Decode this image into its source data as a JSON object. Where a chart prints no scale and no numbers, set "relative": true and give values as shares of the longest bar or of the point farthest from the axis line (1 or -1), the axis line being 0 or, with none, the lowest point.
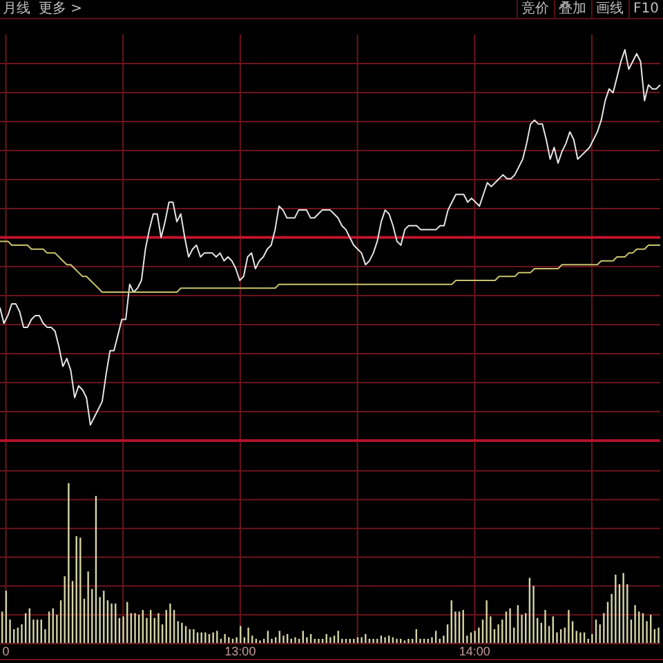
{
  "chart_data": [
    {
      "type": "line",
      "relative": true,
      "grid": true,
      "annotations": [
        "月线",
        "更多 >",
        "竞价",
        "叠加",
        "画线",
        "F10"
      ],
      "ref_lines": [
        {
          "axis": "y",
          "value": 0.52,
          "color": "#c0142c"
        }
      ],
      "categories": [
        null,
        null,
        null,
        null,
        null,
        null,
        null,
        null,
        null,
        null,
        null,
        null,
        null,
        null,
        null,
        null,
        null,
        null,
        null,
        null,
        null,
        null,
        null,
        null,
        null,
        null,
        null,
        null,
        null,
        null,
        null,
        null,
        null,
        null,
        null,
        null,
        null,
        null,
        null,
        null,
        null,
        null,
        null,
        null,
        null,
        null,
        null,
        null,
        null,
        null,
        null,
        null,
        null,
        null,
        null,
        null,
        null,
        null,
        null,
        null,
        null,
        null,
        null,
        null,
        null,
        null,
        null,
        null,
        null,
        null,
        null,
        null,
        null,
        null,
        null,
        null,
        null,
        null,
        null,
        null,
        null,
        null,
        null,
        null,
        null,
        null,
        null,
        null,
        null,
        null,
        null,
        null,
        null,
        null,
        null,
        null,
        null,
        null,
        null,
        null,
        null,
        null,
        null,
        null,
        null,
        null,
        null,
        null,
        null,
        null,
        null,
        null,
        null,
        null,
        null,
        null,
        null,
        null,
        null,
        null,
        null,
        null,
        null,
        null,
        null,
        null,
        null,
        null,
        null,
        null,
        null,
        null,
        null,
        null,
        null,
        null,
        null,
        null,
        null,
        null,
        null,
        null,
        null,
        null,
        null,
        null,
        null,
        null,
        null,
        null,
        null,
        null,
        null,
        null,
        null,
        null,
        null,
        null,
        null,
        null,
        null,
        null,
        null,
        null,
        null,
        null,
        null,
        null,
        null
      ],
      "series": [
        {
          "color": "#e6e6e6",
          "values": [
            0.34,
            0.3,
            0.32,
            0.35,
            0.35,
            0.33,
            0.29,
            0.29,
            0.31,
            0.32,
            0.32,
            0.3,
            0.29,
            0.29,
            0.28,
            0.24,
            0.19,
            0.21,
            0.18,
            0.11,
            0.14,
            0.13,
            0.11,
            0.04,
            0.06,
            0.08,
            0.1,
            0.17,
            0.23,
            0.23,
            0.27,
            0.31,
            0.31,
            0.4,
            0.38,
            0.39,
            0.41,
            0.49,
            0.54,
            0.58,
            0.58,
            0.52,
            0.56,
            0.61,
            0.61,
            0.56,
            0.58,
            0.52,
            0.47,
            0.49,
            0.5,
            0.47,
            0.48,
            0.48,
            0.48,
            0.47,
            0.48,
            0.46,
            0.47,
            0.46,
            0.44,
            0.41,
            0.42,
            0.47,
            0.48,
            0.44,
            0.46,
            0.47,
            0.49,
            0.5,
            0.54,
            0.6,
            0.59,
            0.57,
            0.57,
            0.57,
            0.59,
            0.59,
            0.59,
            0.57,
            0.57,
            0.58,
            0.59,
            0.59,
            0.59,
            0.58,
            0.57,
            0.55,
            0.54,
            0.52,
            0.5,
            0.49,
            0.48,
            0.45,
            0.46,
            0.48,
            0.51,
            0.56,
            0.59,
            0.58,
            0.55,
            0.51,
            0.5,
            0.54,
            0.55,
            0.55,
            0.55,
            0.54,
            0.54,
            0.54,
            0.54,
            0.54,
            0.55,
            0.55,
            0.59,
            0.61,
            0.63,
            0.63,
            0.63,
            0.61,
            0.62,
            0.61,
            0.6,
            0.63,
            0.66,
            0.65,
            0.66,
            0.67,
            0.68,
            0.67,
            0.67,
            0.68,
            0.7,
            0.72,
            0.76,
            0.81,
            0.82,
            0.81,
            0.81,
            0.77,
            0.72,
            0.75,
            0.71,
            0.74,
            0.76,
            0.79,
            0.77,
            0.72,
            0.73,
            0.74,
            0.75,
            0.77,
            0.79,
            0.82,
            0.87,
            0.9,
            0.89,
            0.93,
            0.97,
            1,
            0.95,
            0.97,
            0.99,
            0.97,
            0.87,
            0.91,
            0.9,
            0.9,
            0.91
          ]
        },
        {
          "color": "#c8c46e",
          "values": [
            0.51,
            0.51,
            0.51,
            0.5,
            0.5,
            0.5,
            0.5,
            0.5,
            0.49,
            0.49,
            0.49,
            0.49,
            0.48,
            0.48,
            0.48,
            0.47,
            0.46,
            0.45,
            0.45,
            0.44,
            0.43,
            0.42,
            0.42,
            0.41,
            0.4,
            0.39,
            0.38,
            0.38,
            0.38,
            0.38,
            0.38,
            0.38,
            0.38,
            0.38,
            0.38,
            0.38,
            0.38,
            0.38,
            0.38,
            0.38,
            0.38,
            0.38,
            0.38,
            0.38,
            0.38,
            0.38,
            0.39,
            0.39,
            0.39,
            0.39,
            0.39,
            0.39,
            0.39,
            0.39,
            0.39,
            0.39,
            0.39,
            0.39,
            0.39,
            0.39,
            0.39,
            0.39,
            0.39,
            0.39,
            0.39,
            0.39,
            0.39,
            0.39,
            0.39,
            0.39,
            0.39,
            0.4,
            0.4,
            0.4,
            0.4,
            0.4,
            0.4,
            0.4,
            0.4,
            0.4,
            0.4,
            0.4,
            0.4,
            0.4,
            0.4,
            0.4,
            0.4,
            0.4,
            0.4,
            0.4,
            0.4,
            0.4,
            0.4,
            0.4,
            0.4,
            0.4,
            0.4,
            0.4,
            0.4,
            0.4,
            0.4,
            0.4,
            0.4,
            0.4,
            0.4,
            0.4,
            0.4,
            0.4,
            0.4,
            0.4,
            0.4,
            0.4,
            0.4,
            0.4,
            0.4,
            0.4,
            0.41,
            0.41,
            0.41,
            0.41,
            0.41,
            0.41,
            0.41,
            0.41,
            0.41,
            0.41,
            0.41,
            0.42,
            0.42,
            0.42,
            0.42,
            0.42,
            0.43,
            0.43,
            0.43,
            0.43,
            0.44,
            0.44,
            0.44,
            0.44,
            0.44,
            0.44,
            0.44,
            0.45,
            0.45,
            0.45,
            0.45,
            0.45,
            0.45,
            0.45,
            0.45,
            0.45,
            0.45,
            0.46,
            0.46,
            0.46,
            0.46,
            0.47,
            0.47,
            0.47,
            0.48,
            0.48,
            0.49,
            0.49,
            0.49,
            0.5,
            0.5,
            0.5,
            0.5
          ]
        }
      ]
    },
    {
      "type": "bar",
      "relative": true,
      "grid": true,
      "tick_labels": "x",
      "color": "#d6d6a4",
      "categories": [
        null,
        "0",
        null,
        null,
        null,
        null,
        null,
        null,
        null,
        null,
        null,
        null,
        null,
        null,
        null,
        null,
        null,
        null,
        null,
        null,
        null,
        null,
        null,
        null,
        null,
        null,
        null,
        null,
        null,
        null,
        null,
        null,
        null,
        null,
        null,
        null,
        null,
        null,
        null,
        null,
        null,
        null,
        null,
        null,
        null,
        null,
        null,
        null,
        null,
        null,
        null,
        null,
        null,
        null,
        null,
        null,
        null,
        null,
        null,
        null,
        null,
        "13:00",
        null,
        null,
        null,
        null,
        null,
        null,
        null,
        null,
        null,
        null,
        null,
        null,
        null,
        null,
        null,
        null,
        null,
        null,
        null,
        null,
        null,
        null,
        null,
        null,
        null,
        null,
        null,
        null,
        null,
        null,
        null,
        null,
        null,
        null,
        null,
        null,
        null,
        null,
        null,
        null,
        null,
        null,
        null,
        null,
        null,
        null,
        null,
        null,
        null,
        null,
        null,
        null,
        null,
        null,
        null,
        null,
        null,
        null,
        null,
        "14:00",
        null,
        null,
        null,
        null,
        null,
        null,
        null,
        null,
        null,
        null,
        null,
        null,
        null,
        null,
        null,
        null,
        null,
        null,
        null,
        null,
        null,
        null,
        null,
        null,
        null,
        null,
        null,
        null,
        null,
        null,
        null,
        null,
        null,
        null,
        null,
        null,
        null,
        null,
        null,
        null,
        null,
        null,
        null,
        null,
        null,
        null,
        null
      ],
      "values": [
        0.2,
        0.33,
        0.15,
        0.09,
        0.1,
        0.12,
        0.19,
        0.22,
        0.15,
        0.15,
        0.15,
        0.09,
        0.2,
        0.22,
        0.18,
        0.27,
        0.42,
        1,
        0.39,
        0.67,
        0.66,
        0.28,
        0.45,
        0.34,
        0.92,
        0.29,
        0.33,
        0.27,
        0.25,
        0.25,
        0.16,
        0.17,
        0.26,
        0.19,
        0.19,
        0.18,
        0.21,
        0.16,
        0.21,
        0.16,
        0.19,
        0.12,
        0.21,
        0.25,
        0.21,
        0.14,
        0.13,
        0.11,
        0.09,
        0.09,
        0.07,
        0.07,
        0.07,
        0.06,
        0.07,
        0.08,
        0.03,
        0.06,
        0.04,
        0.03,
        0.04,
        0.11,
        0.04,
        0.1,
        0.05,
        0.03,
        0.02,
        0.03,
        0.08,
        0.03,
        0.04,
        0.08,
        0.05,
        0.06,
        0.03,
        0.04,
        0.03,
        0.08,
        0.04,
        0.06,
        0.03,
        0.03,
        0.03,
        0.06,
        0.04,
        0.05,
        0.08,
        0.03,
        0.03,
        0.03,
        0.03,
        0.04,
        0.04,
        0.06,
        0.03,
        0.03,
        0.03,
        0.05,
        0.04,
        0.05,
        0.04,
        0.03,
        0.03,
        0.02,
        0.03,
        0.03,
        0.09,
        0.03,
        0.03,
        0.03,
        0.04,
        0.08,
        0.03,
        0.05,
        0.12,
        0.27,
        0.2,
        0.2,
        0.21,
        0.05,
        0.07,
        0.08,
        0.1,
        0.15,
        0.27,
        0.17,
        0.09,
        0.12,
        0.15,
        0.2,
        0.22,
        0.1,
        0.24,
        0.18,
        0.19,
        0.41,
        0.36,
        0.16,
        0.13,
        0.21,
        0.11,
        0.17,
        0.07,
        0.09,
        0.1,
        0.21,
        0.14,
        0.08,
        0.07,
        0.07,
        0.03,
        0.06,
        0.15,
        0.12,
        0.19,
        0.26,
        0.31,
        0.43,
        0.37,
        0.44,
        0.37,
        0.15,
        0.24,
        0.2,
        0.19,
        0.14,
        0.18,
        0.09,
        0.1
      ]
    }
  ]
}
